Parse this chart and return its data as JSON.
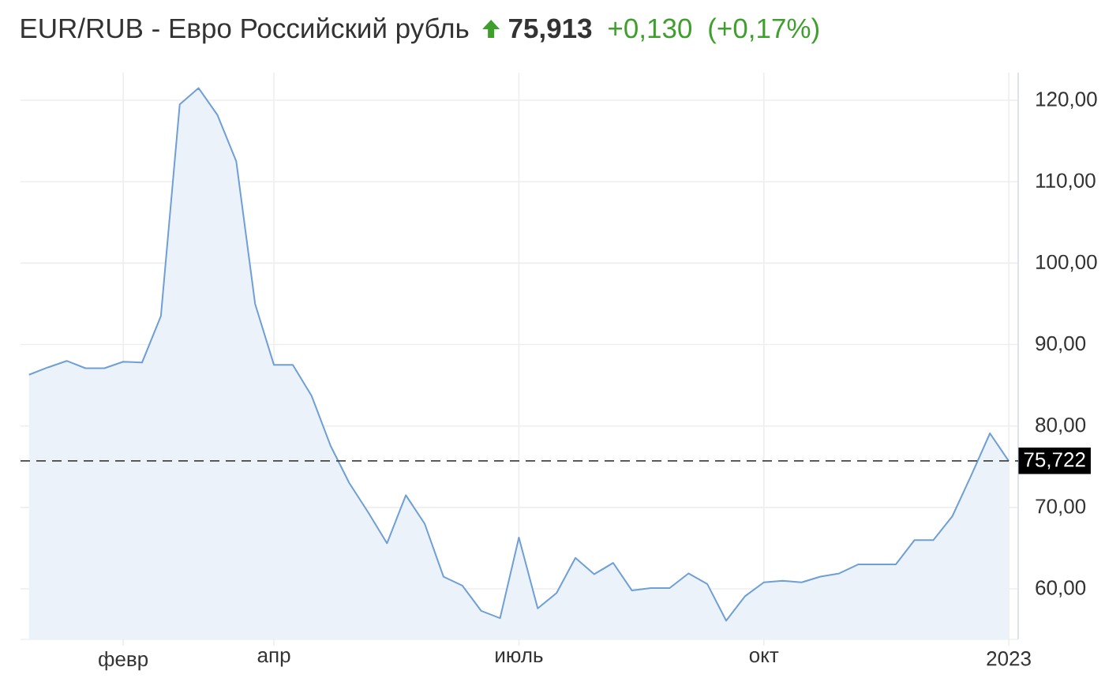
{
  "chart_data": {
    "type": "area",
    "title": "EUR/RUB - Евро Российский рубль",
    "annotations": [
      "75,913",
      "+0,130",
      "(+0,17%)"
    ],
    "categories": [
      null,
      null,
      null,
      null,
      null,
      "февр",
      null,
      null,
      null,
      null,
      null,
      null,
      null,
      "апр",
      null,
      null,
      null,
      null,
      null,
      null,
      null,
      null,
      null,
      null,
      null,
      null,
      "июль",
      null,
      null,
      null,
      null,
      null,
      null,
      null,
      null,
      null,
      null,
      null,
      null,
      "окт",
      null,
      null,
      null,
      null,
      null,
      null,
      null,
      null,
      null,
      null,
      null,
      null,
      "2023"
    ],
    "series": [
      {
        "color": "#6e9fd6",
        "values": [
          86.3,
          87.2,
          88.0,
          87.1,
          87.1,
          87.9,
          87.8,
          93.5,
          119.5,
          121.5,
          118.2,
          112.5,
          95.0,
          87.5,
          87.5,
          83.7,
          77.6,
          73.0,
          69.4,
          65.6,
          71.5,
          68.0,
          61.5,
          60.4,
          57.3,
          56.4,
          66.3,
          57.6,
          59.5,
          63.8,
          61.8,
          63.2,
          59.8,
          60.1,
          60.1,
          61.9,
          60.6,
          56.1,
          59.1,
          60.8,
          61.0,
          60.8,
          61.5,
          61.9,
          63.0,
          63.0,
          63.0,
          66.0,
          66.0,
          68.9,
          73.9,
          79.1,
          75.7
        ]
      }
    ],
    "ylim": [
      53.8,
      123.4
    ],
    "yticks": [
      {
        "value": 60,
        "label": "60,00"
      },
      {
        "value": 70,
        "label": "70,00"
      },
      {
        "value": 80,
        "label": "80,00"
      },
      {
        "value": 90,
        "label": "90,00"
      },
      {
        "value": 100,
        "label": "100,00"
      },
      {
        "value": 110,
        "label": "110,00"
      },
      {
        "value": 120,
        "label": "120,00"
      }
    ],
    "grid": true,
    "ref_lines": [
      {
        "axis": "y",
        "value": 75.722,
        "label": "75,722",
        "color": "#444444",
        "line_style": "dashed"
      }
    ]
  }
}
